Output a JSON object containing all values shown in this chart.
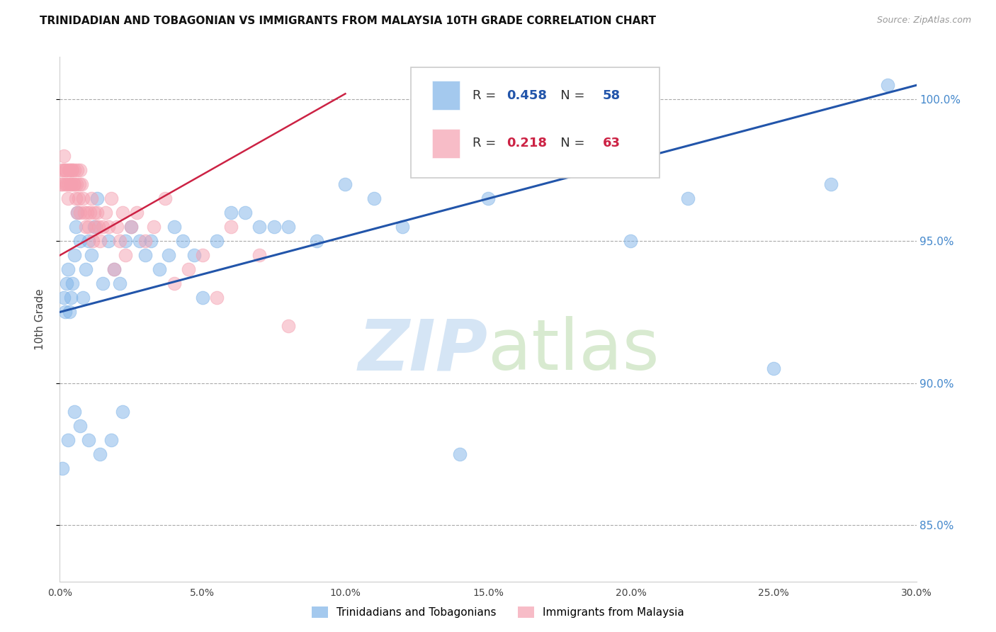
{
  "title": "TRINIDADIAN AND TOBAGONIAN VS IMMIGRANTS FROM MALAYSIA 10TH GRADE CORRELATION CHART",
  "source": "Source: ZipAtlas.com",
  "ylabel": "10th Grade",
  "xlim": [
    0.0,
    30.0
  ],
  "ylim": [
    83.0,
    101.5
  ],
  "yticks": [
    85.0,
    90.0,
    95.0,
    100.0
  ],
  "xticks": [
    0.0,
    5.0,
    10.0,
    15.0,
    20.0,
    25.0,
    30.0
  ],
  "blue_R": 0.458,
  "blue_N": 58,
  "pink_R": 0.218,
  "pink_N": 63,
  "blue_color": "#7EB3E8",
  "pink_color": "#F5A0B0",
  "blue_line_color": "#2255AA",
  "pink_line_color": "#CC2244",
  "watermark_zip": "ZIP",
  "watermark_atlas": "atlas",
  "watermark_color": "#D5E5F5",
  "title_fontsize": 11,
  "source_fontsize": 9,
  "legend_label_blue": "Trinidadians and Tobagonians",
  "legend_label_pink": "Immigrants from Malaysia",
  "blue_scatter_x": [
    0.15,
    0.2,
    0.25,
    0.3,
    0.35,
    0.4,
    0.45,
    0.5,
    0.55,
    0.6,
    0.7,
    0.8,
    0.9,
    1.0,
    1.1,
    1.2,
    1.3,
    1.5,
    1.7,
    1.9,
    2.1,
    2.3,
    2.5,
    2.8,
    3.0,
    3.2,
    3.5,
    3.8,
    4.0,
    4.3,
    4.7,
    5.0,
    5.5,
    6.0,
    6.5,
    7.0,
    7.5,
    8.0,
    9.0,
    10.0,
    11.0,
    12.0,
    14.0,
    15.0,
    17.0,
    20.0,
    22.0,
    25.0,
    27.0,
    29.0,
    0.1,
    0.3,
    0.5,
    0.7,
    1.0,
    1.4,
    1.8,
    2.2
  ],
  "blue_scatter_y": [
    93.0,
    92.5,
    93.5,
    94.0,
    92.5,
    93.0,
    93.5,
    94.5,
    95.5,
    96.0,
    95.0,
    93.0,
    94.0,
    95.0,
    94.5,
    95.5,
    96.5,
    93.5,
    95.0,
    94.0,
    93.5,
    95.0,
    95.5,
    95.0,
    94.5,
    95.0,
    94.0,
    94.5,
    95.5,
    95.0,
    94.5,
    93.0,
    95.0,
    96.0,
    96.0,
    95.5,
    95.5,
    95.5,
    95.0,
    97.0,
    96.5,
    95.5,
    87.5,
    96.5,
    100.5,
    95.0,
    96.5,
    90.5,
    97.0,
    100.5,
    87.0,
    88.0,
    89.0,
    88.5,
    88.0,
    87.5,
    88.0,
    89.0
  ],
  "pink_scatter_x": [
    0.05,
    0.1,
    0.15,
    0.2,
    0.25,
    0.3,
    0.35,
    0.4,
    0.45,
    0.5,
    0.55,
    0.6,
    0.65,
    0.7,
    0.75,
    0.8,
    0.85,
    0.9,
    0.95,
    1.0,
    1.05,
    1.1,
    1.15,
    1.2,
    1.25,
    1.3,
    1.35,
    1.4,
    1.5,
    1.6,
    1.7,
    1.8,
    1.9,
    2.0,
    2.1,
    2.2,
    2.3,
    2.5,
    2.7,
    3.0,
    3.3,
    3.7,
    4.0,
    4.5,
    5.0,
    5.5,
    6.0,
    7.0,
    8.0,
    0.08,
    0.12,
    0.18,
    0.22,
    0.28,
    0.32,
    0.38,
    0.42,
    0.48,
    0.52,
    0.58,
    0.62,
    0.68,
    0.72
  ],
  "pink_scatter_y": [
    97.0,
    97.5,
    98.0,
    97.5,
    97.0,
    96.5,
    97.5,
    97.0,
    97.5,
    97.0,
    96.5,
    96.0,
    96.5,
    96.0,
    97.0,
    96.5,
    96.0,
    95.5,
    96.0,
    95.5,
    96.0,
    96.5,
    95.0,
    96.0,
    95.5,
    96.0,
    95.5,
    95.0,
    95.5,
    96.0,
    95.5,
    96.5,
    94.0,
    95.5,
    95.0,
    96.0,
    94.5,
    95.5,
    96.0,
    95.0,
    95.5,
    96.5,
    93.5,
    94.0,
    94.5,
    93.0,
    95.5,
    94.5,
    92.0,
    97.0,
    97.5,
    97.0,
    97.5,
    97.0,
    97.5,
    97.0,
    97.5,
    97.0,
    97.5,
    97.0,
    97.5,
    97.0,
    97.5
  ],
  "blue_trendline_x0": 0.0,
  "blue_trendline_y0": 92.5,
  "blue_trendline_x1": 30.0,
  "blue_trendline_y1": 100.5,
  "pink_trendline_x0": 0.0,
  "pink_trendline_y0": 94.5,
  "pink_trendline_x1": 10.0,
  "pink_trendline_y1": 100.2
}
